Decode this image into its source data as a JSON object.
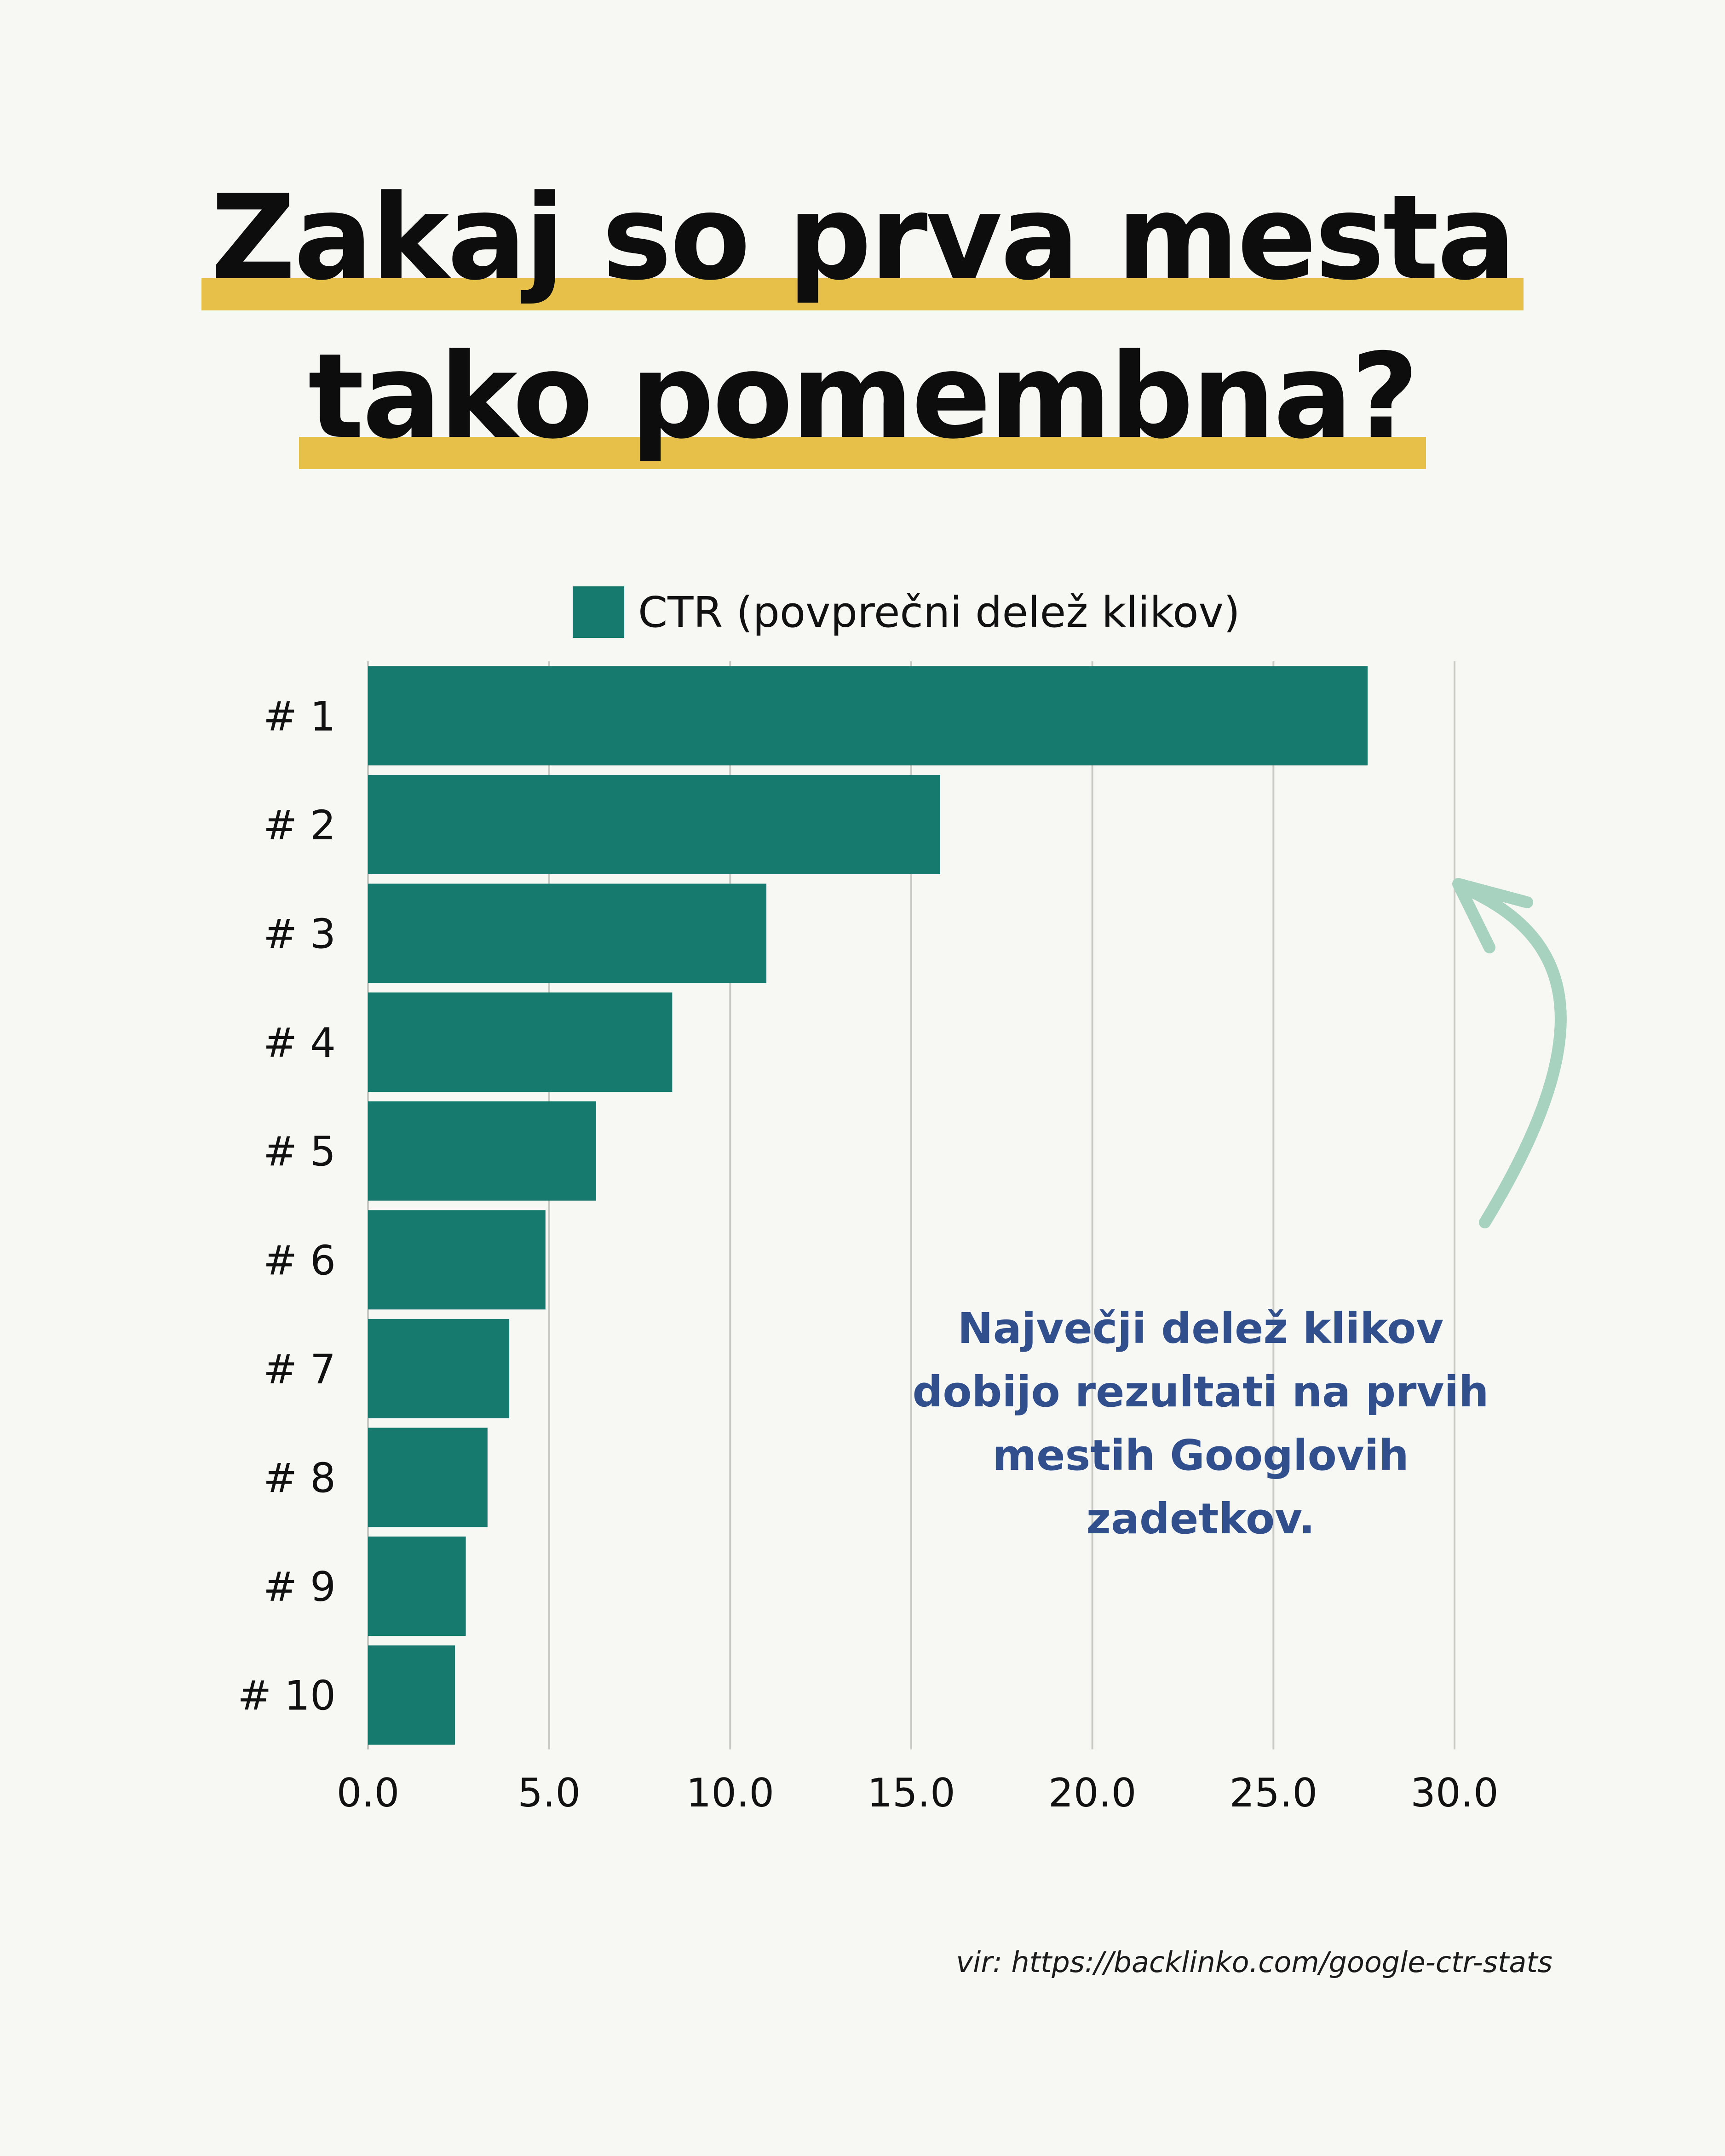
{
  "title": {
    "line1": "Zakaj so prva mesta",
    "line2": "tako pomembna?",
    "highlight_color": "#e7c04a"
  },
  "annotation": {
    "text": "Največji delež klikov dobijo rezultati na prvih mestih Googlovih zadetkov.",
    "color": "#304f8c",
    "arrow_color": "#a6d2bf"
  },
  "source": "vir: https://backlinko.com/google-ctr-stats",
  "chart_data": {
    "type": "bar",
    "orientation": "horizontal",
    "categories": [
      "# 1",
      "# 2",
      "# 3",
      "# 4",
      "# 5",
      "# 6",
      "# 7",
      "# 8",
      "# 9",
      "# 10"
    ],
    "series": [
      {
        "name": "CTR (povprečni delež klikov)",
        "color": "#177a6e",
        "values": [
          27.6,
          15.8,
          11.0,
          8.4,
          6.3,
          4.9,
          3.9,
          3.3,
          2.7,
          2.4
        ]
      }
    ],
    "xlim": [
      0,
      30
    ],
    "xticks": [
      "0.0",
      "5.0",
      "10.0",
      "15.0",
      "20.0",
      "25.0",
      "30.0"
    ],
    "grid": true,
    "legend": "top"
  }
}
